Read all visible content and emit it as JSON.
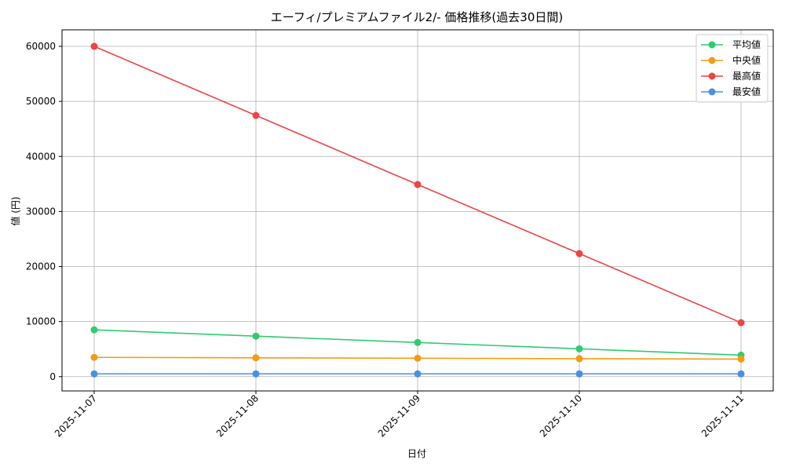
{
  "chart_data": {
    "type": "line",
    "title": "エーフィ/プレミアムファイル2/- 価格推移(過去30日間)",
    "xlabel": "日付",
    "ylabel": "値 (円)",
    "categories": [
      "2025-11-07",
      "2025-11-08",
      "2025-11-09",
      "2025-11-10",
      "2025-11-11"
    ],
    "ylim": [
      -2600,
      63000
    ],
    "yticks": [
      0,
      10000,
      20000,
      30000,
      40000,
      50000,
      60000
    ],
    "grid": true,
    "legend_position": "top-right",
    "series": [
      {
        "name": "平均値",
        "color": "#2ecc71",
        "values": [
          8500,
          7350,
          6200,
          5050,
          3900
        ]
      },
      {
        "name": "中央値",
        "color": "#f39c12",
        "values": [
          3500,
          3420,
          3340,
          3260,
          3180
        ]
      },
      {
        "name": "最高値",
        "color": "#ef4444",
        "values": [
          60000,
          47450,
          34900,
          22350,
          9800
        ]
      },
      {
        "name": "最安値",
        "color": "#4a90e2",
        "values": [
          500,
          500,
          500,
          500,
          500
        ]
      }
    ]
  }
}
